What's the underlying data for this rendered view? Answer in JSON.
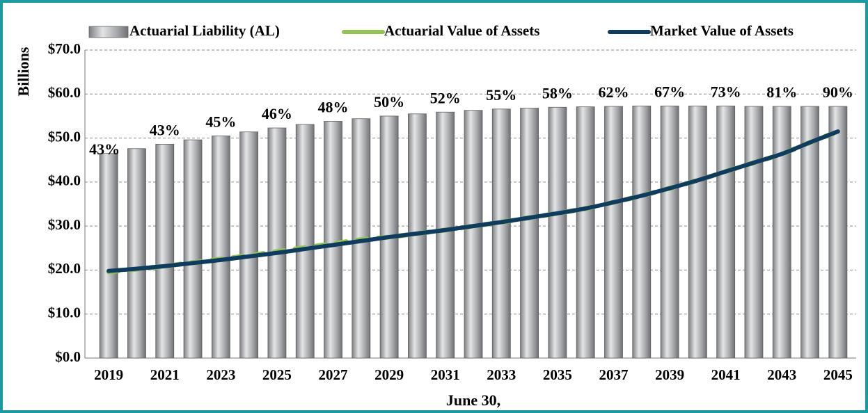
{
  "chart_data": {
    "type": "bar",
    "y_axis_label": "Billions",
    "x_axis_label": "June 30,",
    "categories": [
      "2019",
      null,
      "2021",
      null,
      "2023",
      null,
      "2025",
      null,
      "2027",
      null,
      "2029",
      null,
      "2031",
      null,
      "2033",
      null,
      "2035",
      null,
      "2037",
      null,
      "2039",
      null,
      "2041",
      null,
      "2043",
      null,
      "2045"
    ],
    "series": [
      {
        "name": "Actuarial Liability (AL)",
        "type": "bar",
        "color": "#a6a8ab",
        "values": [
          46.5,
          47.6,
          48.6,
          49.6,
          50.5,
          51.4,
          52.3,
          53.1,
          53.8,
          54.4,
          55.0,
          55.5,
          55.9,
          56.3,
          56.6,
          56.8,
          57.0,
          57.1,
          57.2,
          57.3,
          57.3,
          57.3,
          57.3,
          57.2,
          57.2,
          57.2,
          57.2
        ]
      },
      {
        "name": "Actuarial Value of Assets",
        "type": "line",
        "color": "#92c353",
        "values": [
          19.6,
          20.2,
          20.9,
          21.7,
          22.5,
          23.3,
          24.2,
          25.1,
          26.0,
          26.9,
          27.5,
          28.3,
          29.1,
          30.0,
          30.9,
          31.9,
          32.9,
          34.0,
          35.4,
          36.9,
          38.6,
          40.4,
          42.4,
          44.4,
          46.4,
          49.0,
          51.5
        ]
      },
      {
        "name": "Market Value of Assets",
        "type": "line",
        "color": "#0f3c5e",
        "values": [
          19.8,
          20.3,
          20.9,
          21.6,
          22.3,
          23.1,
          23.9,
          24.8,
          25.7,
          26.6,
          27.5,
          28.3,
          29.1,
          30.0,
          30.9,
          31.9,
          32.9,
          34.0,
          35.4,
          36.9,
          38.6,
          40.4,
          42.4,
          44.4,
          46.4,
          49.0,
          51.5
        ]
      }
    ],
    "funded_ratios": {
      "values": [
        43,
        null,
        43,
        null,
        45,
        null,
        46,
        null,
        48,
        null,
        50,
        null,
        52,
        null,
        55,
        null,
        58,
        null,
        62,
        null,
        67,
        null,
        73,
        null,
        81,
        null,
        90
      ],
      "value_labels": [
        "43%",
        null,
        "43%",
        null,
        "45%",
        null,
        "46%",
        null,
        "48%",
        null,
        "50%",
        null,
        "52%",
        null,
        "55%",
        null,
        "58%",
        null,
        "62%",
        null,
        "67%",
        null,
        "73%",
        null,
        "81%",
        null,
        "90%"
      ]
    },
    "ylim": [
      0,
      70
    ],
    "yticks": [
      {
        "value": 0,
        "label": "$0.0"
      },
      {
        "value": 10,
        "label": "$10.0"
      },
      {
        "value": 20,
        "label": "$20.0"
      },
      {
        "value": 30,
        "label": "$30.0"
      },
      {
        "value": 40,
        "label": "$40.0"
      },
      {
        "value": 50,
        "label": "$50.0"
      },
      {
        "value": 60,
        "label": "$60.0"
      },
      {
        "value": 70,
        "label": "$70.0"
      }
    ],
    "grid": true,
    "legend": "top"
  }
}
